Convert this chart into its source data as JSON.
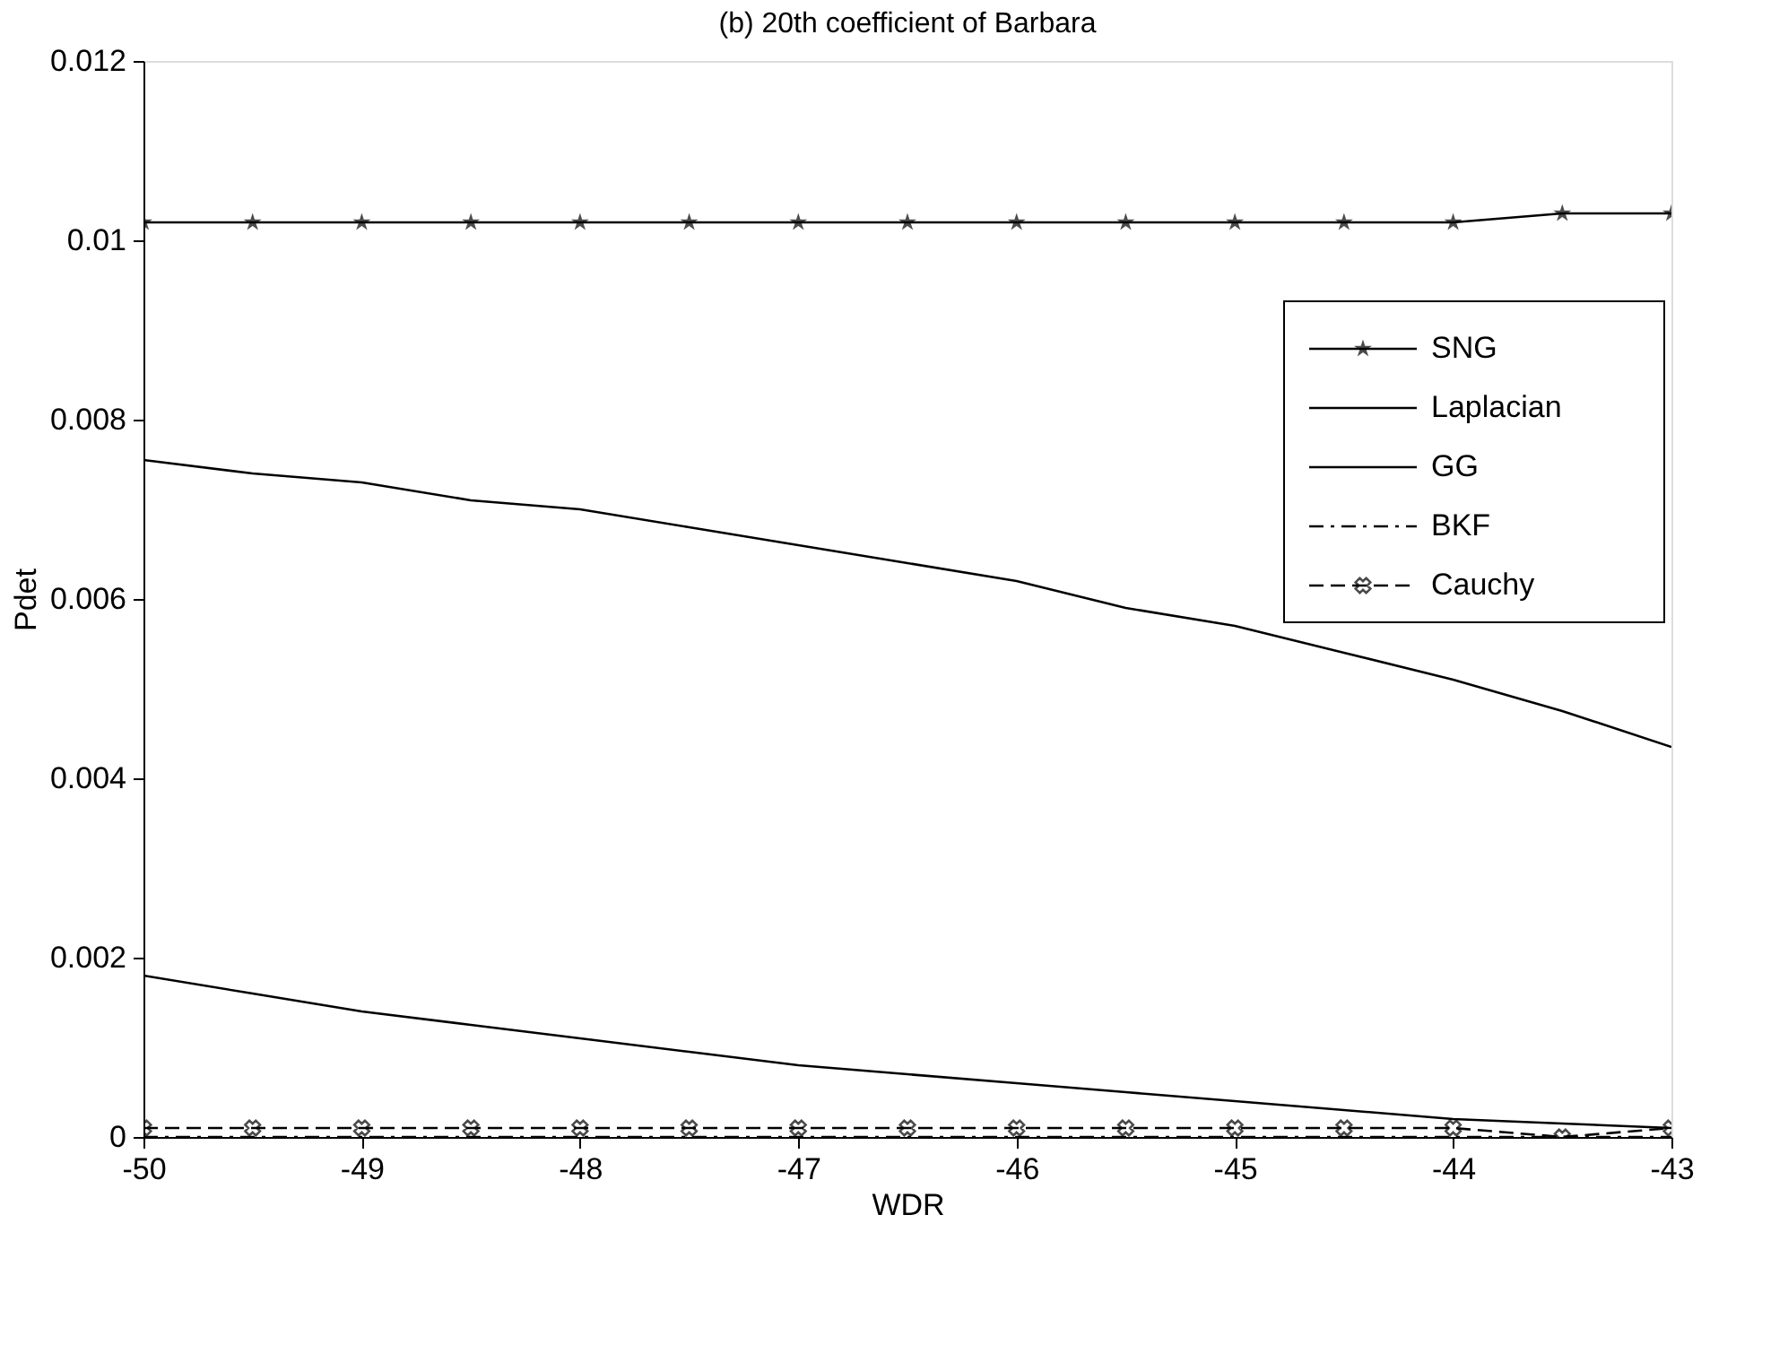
{
  "chart_data": {
    "type": "line",
    "title": "(b) 20th coefficient of Barbara",
    "xlabel": "WDR",
    "ylabel": "Pdet",
    "x": [
      -50,
      -49.5,
      -49,
      -48.5,
      -48,
      -47.5,
      -47,
      -46.5,
      -46,
      -45.5,
      -45,
      -44.5,
      -44,
      -43.5,
      -43
    ],
    "xlim": [
      -50,
      -43
    ],
    "xticks": [
      -50,
      -49,
      -48,
      -47,
      -46,
      -45,
      -44,
      -43
    ],
    "ylim": [
      0,
      0.012
    ],
    "yticks": [
      0,
      0.002,
      0.004,
      0.006,
      0.008,
      0.01,
      0.012
    ],
    "grid": false,
    "legend": "top right",
    "series": [
      {
        "name": "SNG",
        "color": "#000000",
        "marker": "star",
        "line_style": "solid",
        "values": [
          0.0102,
          0.0102,
          0.0102,
          0.0102,
          0.0102,
          0.0102,
          0.0102,
          0.0102,
          0.0102,
          0.0102,
          0.0102,
          0.0102,
          0.0102,
          0.0103,
          0.0103
        ]
      },
      {
        "name": "Laplacian",
        "color": "#000000",
        "marker": "none",
        "line_style": "solid",
        "values": [
          0.0018,
          0.0016,
          0.0014,
          0.00125,
          0.0011,
          0.00095,
          0.0008,
          0.0007,
          0.0006,
          0.0005,
          0.0004,
          0.0003,
          0.0002,
          0.00015,
          0.0001
        ]
      },
      {
        "name": "GG",
        "color": "#000000",
        "marker": "none",
        "line_style": "solid",
        "values": [
          0.00755,
          0.0074,
          0.0073,
          0.0071,
          0.007,
          0.0068,
          0.0066,
          0.0064,
          0.0062,
          0.0059,
          0.0057,
          0.0054,
          0.0051,
          0.00475,
          0.00435
        ]
      },
      {
        "name": "BKF",
        "color": "#000000",
        "marker": "none",
        "line_style": "dashdot",
        "values": [
          0.0,
          0.0,
          0.0,
          0.0,
          0.0,
          0.0,
          0.0,
          0.0,
          0.0,
          0.0,
          0.0,
          0.0,
          0.0,
          0.0,
          0.0
        ]
      },
      {
        "name": "Cauchy",
        "color": "#000000",
        "marker": "cross",
        "line_style": "dashed",
        "values": [
          0.0001,
          0.0001,
          0.0001,
          0.0001,
          0.0001,
          0.0001,
          0.0001,
          0.0001,
          0.0001,
          0.0001,
          0.0001,
          0.0001,
          0.0001,
          0.0,
          0.0001
        ]
      }
    ]
  }
}
